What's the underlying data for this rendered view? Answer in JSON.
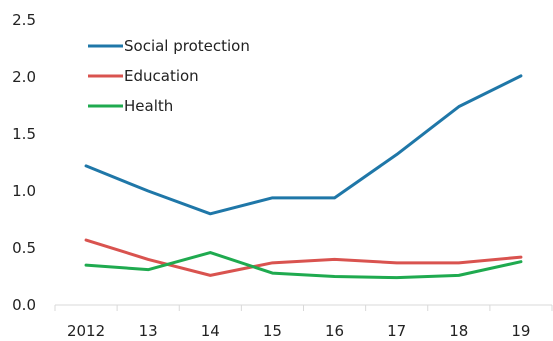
{
  "chart_data": {
    "type": "line",
    "categories": [
      "2012",
      "13",
      "14",
      "15",
      "16",
      "17",
      "18",
      "19"
    ],
    "series": [
      {
        "name": "Social protection",
        "color": "#1f77a8",
        "values": [
          1.22,
          1.0,
          0.8,
          0.94,
          0.94,
          1.32,
          1.74,
          2.01
        ]
      },
      {
        "name": "Education",
        "color": "#d9534f",
        "values": [
          0.57,
          0.4,
          0.26,
          0.37,
          0.4,
          0.37,
          0.37,
          0.42
        ]
      },
      {
        "name": "Health",
        "color": "#1faa4f",
        "values": [
          0.35,
          0.31,
          0.46,
          0.28,
          0.25,
          0.24,
          0.26,
          0.38
        ]
      }
    ],
    "y_ticks": [
      "0.0",
      "0.5",
      "1.0",
      "1.5",
      "2.0",
      "2.5"
    ],
    "ylim": [
      0,
      2.5
    ],
    "grid": false,
    "legend_position": "top-left"
  }
}
